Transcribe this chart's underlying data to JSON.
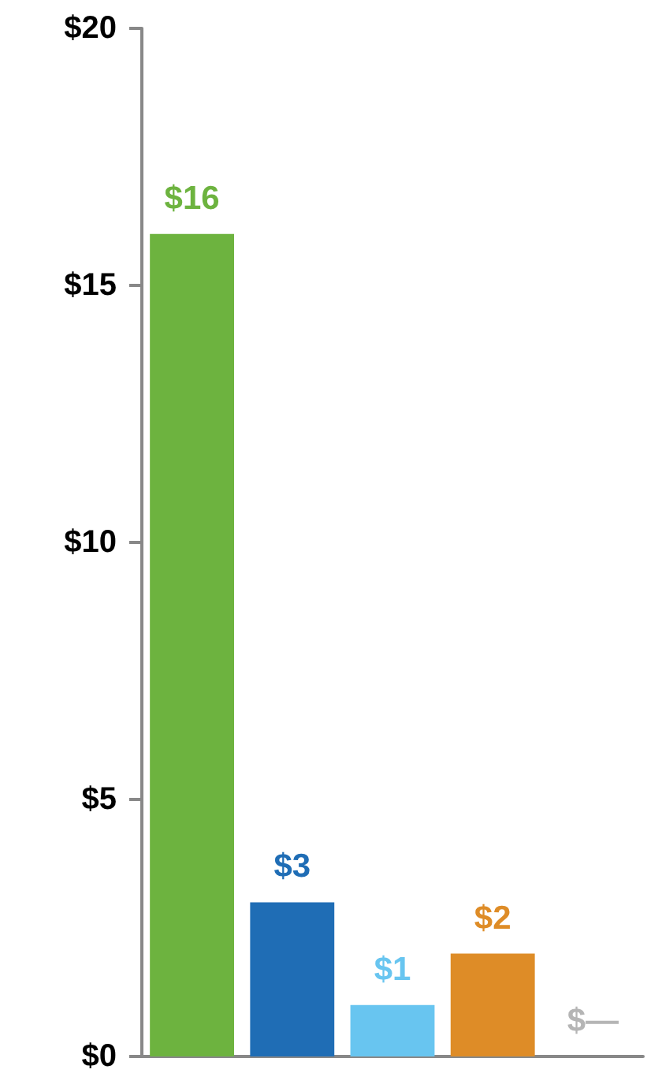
{
  "chart_data": {
    "type": "bar",
    "categories": [
      null,
      null,
      null,
      null,
      null
    ],
    "values": [
      16,
      3,
      1,
      2,
      0
    ],
    "colors": [
      "#6db33f",
      "#1f6db5",
      "#68c5f0",
      "#de8c27",
      "#b5b5b5"
    ],
    "value_labels": [
      "$16",
      "$3",
      "$1",
      "$2",
      "$—"
    ],
    "ylim": [
      0,
      20
    ],
    "yticks": [
      {
        "value": 0,
        "label": "$0"
      },
      {
        "value": 5,
        "label": "$5"
      },
      {
        "value": 10,
        "label": "$10"
      },
      {
        "value": 15,
        "label": "$15"
      },
      {
        "value": 20,
        "label": "$20"
      }
    ],
    "grid": false,
    "tick_labels": "y"
  }
}
